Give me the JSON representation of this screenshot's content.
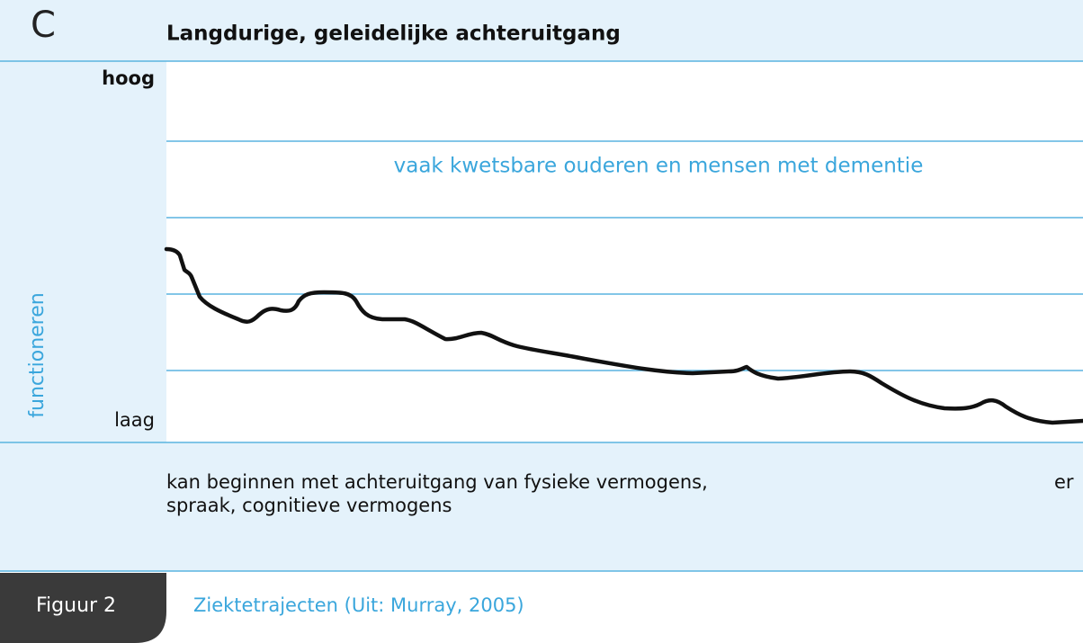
{
  "header": {
    "letter": "C",
    "title": "Langdurige, geleidelijke achteruitgang"
  },
  "axis": {
    "label": "functioneren",
    "high": "hoog",
    "low": "laag"
  },
  "annotation": "vaak kwetsbare ouderen en mensen met dementie",
  "description": {
    "lines": [
      "kan beginnen met achteruitgang van fysieke vermogens,",
      "spraak, cognitieve vermogens"
    ],
    "cut": "er"
  },
  "footer": {
    "label": "Figuur 2",
    "caption": "Ziektetrajecten (Uit: Murray, 2005)"
  }
}
